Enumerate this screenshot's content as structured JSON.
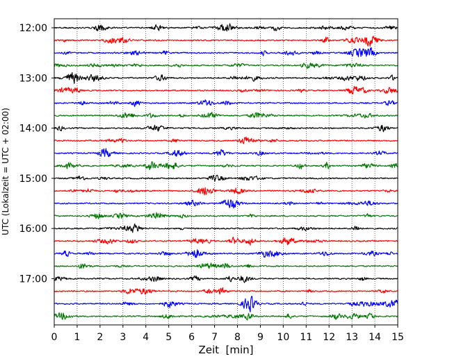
{
  "chart_data": {
    "type": "line",
    "title": "",
    "xlabel": "Zeit  [min]",
    "ylabel": "UTC (Lokalzeit = UTC + 02:00)",
    "xlim": [
      0,
      15
    ],
    "x_ticks": [
      "0",
      "1",
      "2",
      "3",
      "4",
      "5",
      "6",
      "7",
      "8",
      "9",
      "10",
      "11",
      "12",
      "13",
      "14",
      "15"
    ],
    "y_ticks": [
      "12:00",
      "13:00",
      "14:00",
      "15:00",
      "16:00",
      "17:00"
    ],
    "grid": "vertical dotted",
    "trace_colors": [
      "#000000",
      "#ff0000",
      "#0000ff",
      "#007700"
    ],
    "trace_start": "12:00",
    "trace_interval_min": 15,
    "trace_count": 24
  }
}
